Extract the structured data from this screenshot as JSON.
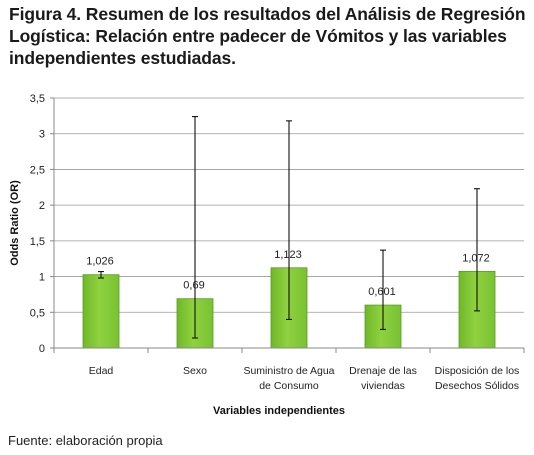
{
  "figure": {
    "title": "Figura 4. Resumen de los resultados del Análisis de Regresión Logística: Relación entre padecer de Vómitos y las variables independientes estudiadas.",
    "source": "Fuente: elaboración propia"
  },
  "chart_data": {
    "type": "bar",
    "title": "",
    "xlabel": "Variables independientes",
    "ylabel": "Odds Ratio (OR)",
    "ylim": [
      0,
      3.5
    ],
    "yticks": [
      "0",
      "0,5",
      "1",
      "1,5",
      "2",
      "2,5",
      "3",
      "3,5"
    ],
    "ytick_values": [
      0,
      0.5,
      1,
      1.5,
      2,
      2.5,
      3,
      3.5
    ],
    "grid": true,
    "legend": "none",
    "bar_color": "#8fd13f",
    "categories": [
      [
        "Edad"
      ],
      [
        "Sexo"
      ],
      [
        "Suministro de Agua",
        "de Consumo"
      ],
      [
        "Drenaje de las",
        "viviendas"
      ],
      [
        "Disposición de los",
        "Desechos Sólidos"
      ]
    ],
    "values": [
      1.026,
      0.69,
      1.123,
      0.601,
      1.072
    ],
    "data_labels": [
      "1,026",
      "0,69",
      "1,123",
      "0,601",
      "1,072"
    ],
    "error_low": [
      0.98,
      0.14,
      0.4,
      0.26,
      0.52
    ],
    "error_high": [
      1.07,
      3.24,
      3.18,
      1.37,
      2.23
    ]
  }
}
